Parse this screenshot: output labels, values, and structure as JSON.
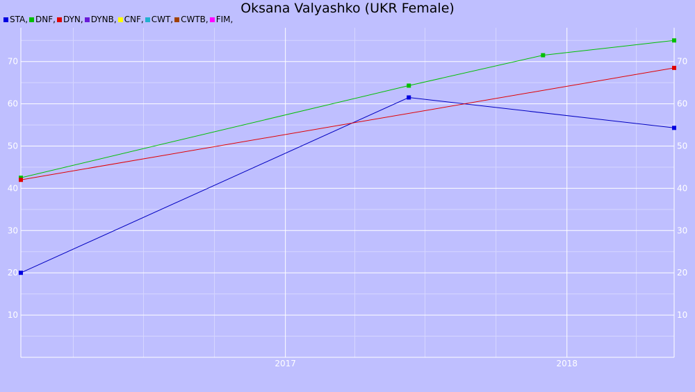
{
  "chart_data": {
    "type": "line",
    "title": "Oksana Valyashko (UKR Female)",
    "xlabel": "",
    "ylabel": "",
    "x_type": "date",
    "xlim": [
      "2016-01-24",
      "2018-05-20"
    ],
    "ylim": [
      0,
      78
    ],
    "y_ticks": [
      10,
      20,
      30,
      40,
      50,
      60,
      70
    ],
    "x_ticks": [
      {
        "date": "2017-01-01",
        "label": "2017"
      },
      {
        "date": "2018-01-01",
        "label": "2018"
      }
    ],
    "x_minor_grid": [
      "2016-04-01",
      "2016-07-01",
      "2016-10-01",
      "2017-04-01",
      "2017-07-01",
      "2017-10-01",
      "2018-04-01"
    ],
    "y_minor_grid": [
      5,
      15,
      25,
      35,
      45,
      55,
      65,
      75
    ],
    "grid": true,
    "legend_position": "top-left",
    "legend": [
      {
        "label": "STA,",
        "color": "#0000e0"
      },
      {
        "label": "DNF,",
        "color": "#00c000"
      },
      {
        "label": "DYN,",
        "color": "#e00000"
      },
      {
        "label": "DYNB,",
        "color": "#6a1ad8"
      },
      {
        "label": "CNF,",
        "color": "#ffff00"
      },
      {
        "label": "CWT,",
        "color": "#20b0d0"
      },
      {
        "label": "CWTB,",
        "color": "#a04000"
      },
      {
        "label": "FIM,",
        "color": "#ff00ff"
      }
    ],
    "series": [
      {
        "name": "STA",
        "color": "#0000c0",
        "marker_color": "#0000e0",
        "points": [
          {
            "x": "2016-01-24",
            "y": 20
          },
          {
            "x": "2017-06-10",
            "y": 61.5
          },
          {
            "x": "2018-05-20",
            "y": 54.3
          }
        ]
      },
      {
        "name": "DNF",
        "color": "#00c000",
        "marker_color": "#00c000",
        "points": [
          {
            "x": "2016-01-24",
            "y": 42.5
          },
          {
            "x": "2017-06-10",
            "y": 64.3
          },
          {
            "x": "2017-12-01",
            "y": 71.5
          },
          {
            "x": "2018-05-20",
            "y": 75
          }
        ]
      },
      {
        "name": "DYN",
        "color": "#e00000",
        "marker_color": "#e00000",
        "points": [
          {
            "x": "2016-01-24",
            "y": 42
          },
          {
            "x": "2018-05-20",
            "y": 68.5
          }
        ]
      }
    ]
  }
}
